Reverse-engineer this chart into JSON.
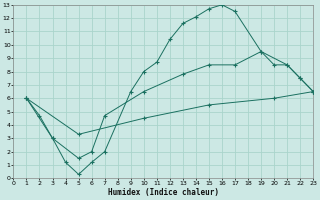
{
  "xlabel": "Humidex (Indice chaleur)",
  "bg_color": "#cce8e4",
  "grid_color": "#aad4cc",
  "line_color": "#1a7060",
  "xlim": [
    0,
    23
  ],
  "ylim": [
    0,
    13
  ],
  "xticks": [
    0,
    1,
    2,
    3,
    4,
    5,
    6,
    7,
    8,
    9,
    10,
    11,
    12,
    13,
    14,
    15,
    16,
    17,
    18,
    19,
    20,
    21,
    22,
    23
  ],
  "yticks": [
    0,
    1,
    2,
    3,
    4,
    5,
    6,
    7,
    8,
    9,
    10,
    11,
    12,
    13
  ],
  "line1_x": [
    1,
    2,
    3,
    4,
    5,
    6,
    7,
    9,
    10,
    11,
    12,
    13,
    14,
    15,
    16,
    17,
    19,
    21,
    22,
    23
  ],
  "line1_y": [
    6,
    4.7,
    3.0,
    1.2,
    0.3,
    1.2,
    2.0,
    6.5,
    8.0,
    8.7,
    10.4,
    11.6,
    12.1,
    12.7,
    13.0,
    12.5,
    9.5,
    8.5,
    7.5,
    6.5
  ],
  "line2_x": [
    1,
    3,
    5,
    6,
    7,
    10,
    13,
    15,
    17,
    19,
    20,
    21,
    22,
    23
  ],
  "line2_y": [
    6,
    3.0,
    1.5,
    2.0,
    4.7,
    6.5,
    7.8,
    8.5,
    8.5,
    9.5,
    8.5,
    8.5,
    7.5,
    6.5
  ],
  "line3_x": [
    1,
    5,
    10,
    15,
    20,
    23
  ],
  "line3_y": [
    6.0,
    3.3,
    4.5,
    5.5,
    6.0,
    6.5
  ]
}
